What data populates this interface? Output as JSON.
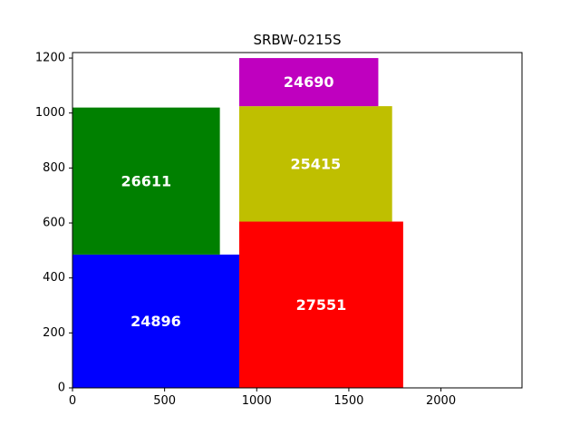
{
  "chart_data": {
    "type": "rectangles",
    "title": "SRBW-0215S",
    "xlabel": "",
    "ylabel": "",
    "xlim": [
      0,
      2440
    ],
    "ylim": [
      0,
      1220
    ],
    "xticks": [
      0,
      500,
      1000,
      1500,
      2000
    ],
    "yticks": [
      0,
      200,
      400,
      600,
      800,
      1000,
      1200
    ],
    "grid": false,
    "rectangles": [
      {
        "label": "24896",
        "x": 0,
        "y": 0,
        "width": 905,
        "height": 485,
        "color": "#0000ff"
      },
      {
        "label": "26611",
        "x": 0,
        "y": 485,
        "width": 800,
        "height": 535,
        "color": "#008000"
      },
      {
        "label": "27551",
        "x": 905,
        "y": 0,
        "width": 890,
        "height": 605,
        "color": "#ff0000"
      },
      {
        "label": "25415",
        "x": 905,
        "y": 605,
        "width": 830,
        "height": 420,
        "color": "#bfbf00"
      },
      {
        "label": "24690",
        "x": 905,
        "y": 1025,
        "width": 755,
        "height": 175,
        "color": "#bf00bf"
      }
    ]
  }
}
